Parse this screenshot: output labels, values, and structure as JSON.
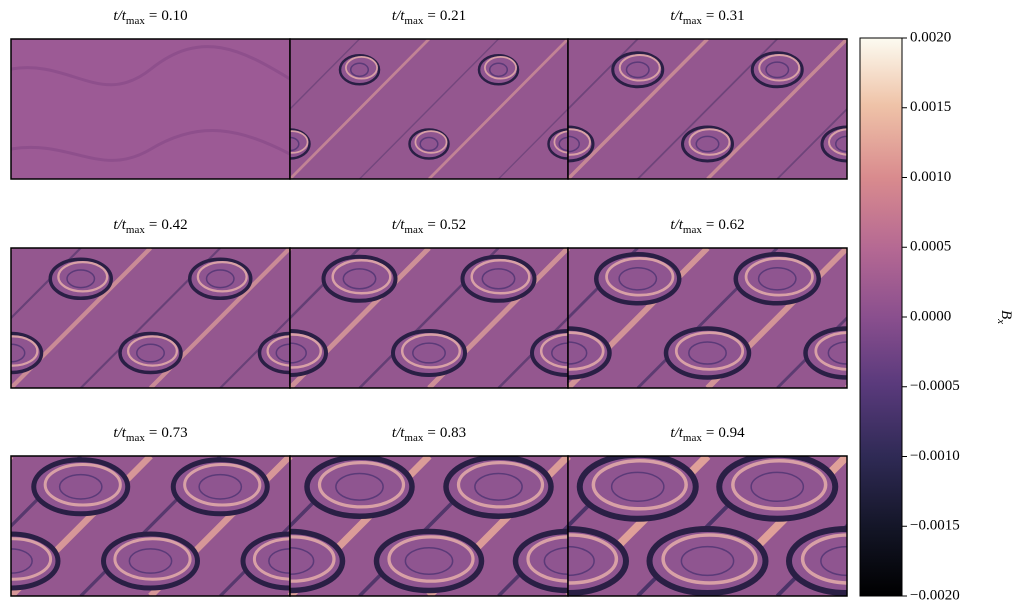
{
  "chart_data": {
    "type": "snapshot-grid",
    "title_symbol": "t/t",
    "title_subscript": "max",
    "title_eq": "=",
    "panels": [
      {
        "time": "0.10"
      },
      {
        "time": "0.21"
      },
      {
        "time": "0.31"
      },
      {
        "time": "0.42"
      },
      {
        "time": "0.52"
      },
      {
        "time": "0.62"
      },
      {
        "time": "0.73"
      },
      {
        "time": "0.83"
      },
      {
        "time": "0.94"
      }
    ],
    "colorbar_label": "B",
    "colorbar_label_sub": "x",
    "clim": [
      -0.002,
      0.002
    ],
    "cticks": [
      {
        "value": 0.002,
        "label": "0.0020"
      },
      {
        "value": 0.0015,
        "label": "0.0015"
      },
      {
        "value": 0.001,
        "label": "0.0010"
      },
      {
        "value": 0.0005,
        "label": "0.0005"
      },
      {
        "value": 0,
        "label": "0.0000"
      },
      {
        "value": -0.0005,
        "label": "−0.0005"
      },
      {
        "value": -0.001,
        "label": "−0.0010"
      },
      {
        "value": -0.0015,
        "label": "−0.0015"
      },
      {
        "value": -0.002,
        "label": "−0.0020"
      }
    ]
  }
}
